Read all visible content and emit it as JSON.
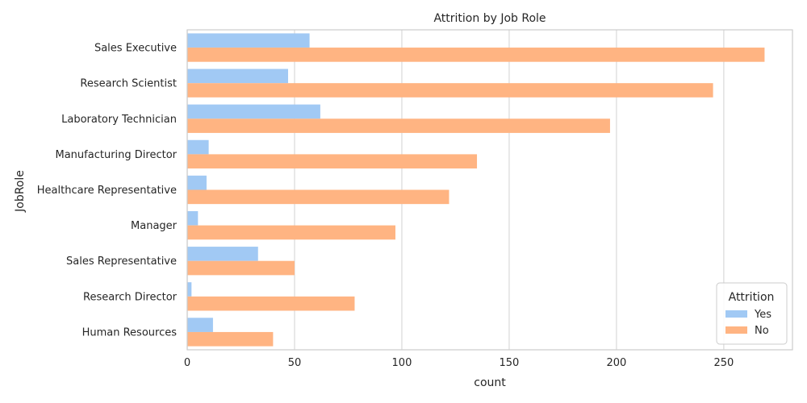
{
  "chart_data": {
    "type": "bar",
    "orientation": "horizontal",
    "title": "Attrition by Job Role",
    "xlabel": "count",
    "ylabel": "JobRole",
    "xlim": [
      0,
      282
    ],
    "xticks": [
      0,
      50,
      100,
      150,
      200,
      250
    ],
    "grid": "vertical",
    "categories": [
      "Sales Executive",
      "Research Scientist",
      "Laboratory Technician",
      "Manufacturing Director",
      "Healthcare Representative",
      "Manager",
      "Sales Representative",
      "Research Director",
      "Human Resources"
    ],
    "series": [
      {
        "name": "Yes",
        "color": "#a1c9f4",
        "values": [
          57,
          47,
          62,
          10,
          9,
          5,
          33,
          2,
          12
        ]
      },
      {
        "name": "No",
        "color": "#ffb482",
        "values": [
          269,
          245,
          197,
          135,
          122,
          97,
          50,
          78,
          40
        ]
      }
    ],
    "legend": {
      "title": "Attrition",
      "position": "lower-right"
    }
  }
}
